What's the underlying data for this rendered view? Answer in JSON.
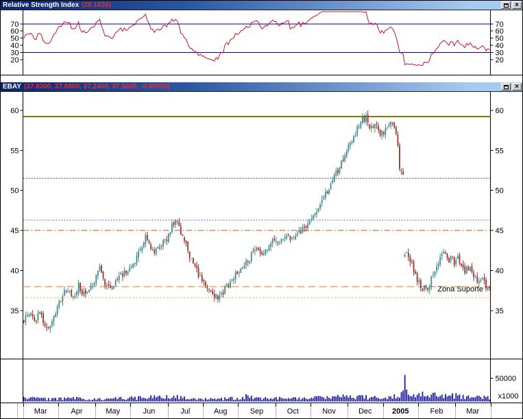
{
  "rsi_panel": {
    "title": "Relative Strength Index",
    "value": "(28.1826)"
  },
  "price_panel": {
    "symbol": "EBAY",
    "quote": "(37.8300, 37.8800, 37.2400, 37.5600, -0.69000)"
  },
  "window_controls": {
    "close_glyph": "×"
  },
  "chart_data": [
    {
      "type": "line",
      "name": "relative-strength-index",
      "title": "Relative Strength Index",
      "last_value": 28.1826,
      "period": 14,
      "levels": [
        70,
        30
      ],
      "level_color": "#000080",
      "line_color": "#cc1122",
      "yticks": [
        70,
        60,
        50,
        40,
        30,
        20
      ],
      "ylim": [
        0,
        87
      ],
      "derived_from": "price closes"
    },
    {
      "type": "candlestick",
      "name": "ebay-daily-price",
      "symbol": "EBAY",
      "last_open": 37.83,
      "last_high": 37.88,
      "last_low": 37.24,
      "last_close": 37.56,
      "change": -0.69,
      "yticks": [
        60,
        55,
        50,
        45,
        40,
        35
      ],
      "ylim": [
        29,
        62.3
      ],
      "n_bars": 265,
      "seed": 7,
      "up_color": "#3d8b8b",
      "down_color": "#993227",
      "hlines": [
        {
          "value": 59.2,
          "color": "#7d7d00",
          "width": 2,
          "dash": ""
        },
        {
          "value": 51.5,
          "color": "#3333aa",
          "width": 1,
          "dash": "2,2"
        },
        {
          "value": 46.3,
          "color": "#6666bb",
          "width": 1,
          "dash": "2,2"
        },
        {
          "value": 45.0,
          "color": "#cc5500",
          "width": 1,
          "dash": "9,3,2,3"
        },
        {
          "value": 38.0,
          "color": "#ee7711",
          "width": 1,
          "dash": "11,5"
        },
        {
          "value": 36.6,
          "color": "#ee9933",
          "width": 1,
          "dash": "2,3"
        }
      ],
      "annotation": {
        "text": "Zona Suporte",
        "color": "#0000cc",
        "bar": 235,
        "value": 37.38
      },
      "months": [
        {
          "label": "Mar",
          "start": 0
        },
        {
          "label": "Apr",
          "start": 20
        },
        {
          "label": "May",
          "start": 41
        },
        {
          "label": "Jun",
          "start": 61
        },
        {
          "label": "Jul",
          "start": 82
        },
        {
          "label": "Aug",
          "start": 102
        },
        {
          "label": "Sep",
          "start": 122
        },
        {
          "label": "Oct",
          "start": 143
        },
        {
          "label": "Nov",
          "start": 163
        },
        {
          "label": "Dec",
          "start": 184
        },
        {
          "label": "2005",
          "start": 204,
          "bold": true
        },
        {
          "label": "Feb",
          "start": 224
        },
        {
          "label": "Mar",
          "start": 245
        }
      ],
      "close_anchors": [
        [
          0,
          33.8
        ],
        [
          3,
          34.6
        ],
        [
          6,
          33.5
        ],
        [
          9,
          34.7
        ],
        [
          12,
          33.2
        ],
        [
          14,
          32.9
        ],
        [
          17,
          34.3
        ],
        [
          19,
          35.3
        ],
        [
          22,
          36.8
        ],
        [
          25,
          37.7
        ],
        [
          28,
          36.6
        ],
        [
          31,
          38.2
        ],
        [
          34,
          37.0
        ],
        [
          38,
          38.0
        ],
        [
          40,
          38.6
        ],
        [
          43,
          40.2
        ],
        [
          46,
          38.4
        ],
        [
          49,
          37.7
        ],
        [
          53,
          38.9
        ],
        [
          57,
          39.8
        ],
        [
          60,
          40.1
        ],
        [
          63,
          41.0
        ],
        [
          66,
          42.6
        ],
        [
          69,
          44.3
        ],
        [
          72,
          43.1
        ],
        [
          75,
          42.3
        ],
        [
          78,
          43.3
        ],
        [
          81,
          44.0
        ],
        [
          84,
          45.8
        ],
        [
          86,
          46.2
        ],
        [
          89,
          44.6
        ],
        [
          92,
          43.0
        ],
        [
          95,
          41.3
        ],
        [
          98,
          39.9
        ],
        [
          101,
          38.7
        ],
        [
          104,
          38.0
        ],
        [
          107,
          36.9
        ],
        [
          110,
          36.7
        ],
        [
          114,
          37.6
        ],
        [
          118,
          38.9
        ],
        [
          121,
          39.6
        ],
        [
          124,
          40.3
        ],
        [
          128,
          41.6
        ],
        [
          132,
          42.9
        ],
        [
          136,
          42.1
        ],
        [
          140,
          43.4
        ],
        [
          142,
          43.9
        ],
        [
          145,
          43.2
        ],
        [
          149,
          44.6
        ],
        [
          153,
          43.8
        ],
        [
          157,
          45.0
        ],
        [
          160,
          45.6
        ],
        [
          162,
          46.1
        ],
        [
          166,
          47.3
        ],
        [
          170,
          49.0
        ],
        [
          174,
          50.8
        ],
        [
          178,
          52.4
        ],
        [
          181,
          54.0
        ],
        [
          183,
          55.2
        ],
        [
          186,
          56.3
        ],
        [
          189,
          57.6
        ],
        [
          192,
          58.8
        ],
        [
          194,
          59.0
        ],
        [
          196,
          57.4
        ],
        [
          199,
          58.3
        ],
        [
          202,
          57.0
        ],
        [
          205,
          57.6
        ],
        [
          208,
          58.9
        ],
        [
          210,
          57.8
        ],
        [
          212,
          55.5
        ],
        [
          213,
          53.0
        ],
        [
          215,
          52.2
        ],
        [
          216,
          42.4
        ],
        [
          218,
          41.8
        ],
        [
          220,
          40.9
        ],
        [
          222,
          39.6
        ],
        [
          223,
          38.6
        ],
        [
          226,
          37.9
        ],
        [
          228,
          37.6
        ],
        [
          230,
          38.4
        ],
        [
          233,
          40.2
        ],
        [
          236,
          41.5
        ],
        [
          238,
          42.1
        ],
        [
          240,
          41.2
        ],
        [
          242,
          41.7
        ],
        [
          244,
          41.0
        ],
        [
          246,
          41.4
        ],
        [
          248,
          40.7
        ],
        [
          250,
          40.0
        ],
        [
          252,
          40.5
        ],
        [
          254,
          39.6
        ],
        [
          256,
          39.0
        ],
        [
          258,
          38.4
        ],
        [
          260,
          38.9
        ],
        [
          262,
          38.0
        ],
        [
          264,
          37.56
        ]
      ]
    },
    {
      "type": "bar",
      "name": "volume",
      "color": "#1a1aa6",
      "axis_label": "50000",
      "axis_value": 50000,
      "unit_label": "x1000",
      "ylim": [
        0,
        92000
      ],
      "spike": {
        "index": 216,
        "value": 57000
      },
      "volume_anchors": [
        [
          0,
          7000
        ],
        [
          15,
          5500
        ],
        [
          30,
          6500
        ],
        [
          45,
          6000
        ],
        [
          60,
          7500
        ],
        [
          82,
          9500
        ],
        [
          86,
          13000
        ],
        [
          95,
          7000
        ],
        [
          102,
          5500
        ],
        [
          115,
          6000
        ],
        [
          122,
          8000
        ],
        [
          126,
          11000
        ],
        [
          135,
          6500
        ],
        [
          143,
          7000
        ],
        [
          155,
          6500
        ],
        [
          163,
          8500
        ],
        [
          175,
          9500
        ],
        [
          184,
          10000
        ],
        [
          195,
          9000
        ],
        [
          205,
          8500
        ],
        [
          212,
          13000
        ],
        [
          214,
          22000
        ],
        [
          216,
          57000
        ],
        [
          217,
          32000
        ],
        [
          219,
          25000
        ],
        [
          222,
          18000
        ],
        [
          226,
          15000
        ],
        [
          230,
          14000
        ],
        [
          234,
          16000
        ],
        [
          238,
          13000
        ],
        [
          242,
          11000
        ],
        [
          246,
          13000
        ],
        [
          250,
          10000
        ],
        [
          254,
          12000
        ],
        [
          258,
          9000
        ],
        [
          262,
          11000
        ],
        [
          264,
          9000
        ]
      ]
    }
  ]
}
